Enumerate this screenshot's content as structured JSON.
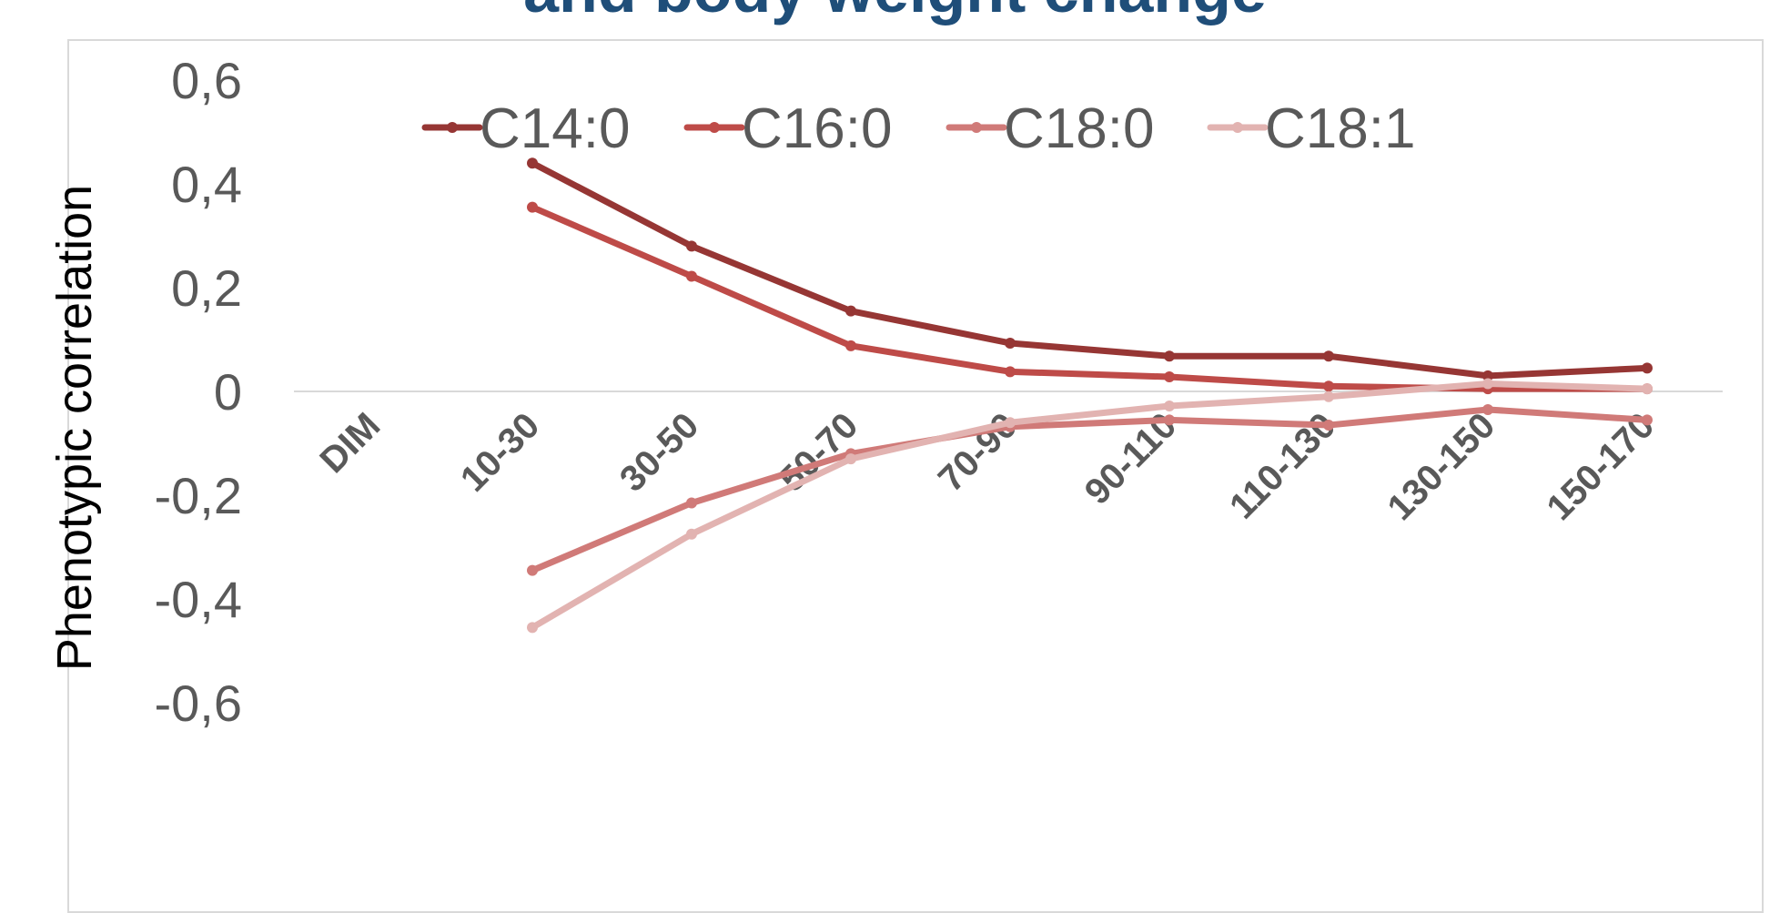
{
  "title_fragment": "and body weight change",
  "colors": {
    "title": "#1F4E79",
    "axis_text": "#595959",
    "zero_line": "#D9D9D9"
  },
  "chart_data": {
    "type": "line",
    "title": "and body weight change",
    "xlabel": "",
    "ylabel": "Phenotypic correlation",
    "categories": [
      "DIM",
      "10-30",
      "30-50",
      "50-70",
      "70-90",
      "90-110",
      "110-130",
      "130-150",
      "150-170"
    ],
    "ylim": [
      -0.6,
      0.6
    ],
    "yticks": [
      0.6,
      0.4,
      0.2,
      0,
      -0.2,
      -0.4,
      -0.6
    ],
    "ytick_labels": [
      "0,6",
      "0,4",
      "0,2",
      "0",
      "-0,2",
      "-0,4",
      "-0,6"
    ],
    "grid": false,
    "legend_position": "top",
    "series": [
      {
        "name": "C14:0",
        "color": "#963634",
        "values": [
          null,
          0.44,
          0.28,
          0.155,
          0.093,
          0.068,
          0.068,
          0.03,
          0.045
        ]
      },
      {
        "name": "C16:0",
        "color": "#BE4B48",
        "values": [
          null,
          0.355,
          0.222,
          0.088,
          0.038,
          0.028,
          0.01,
          0.005,
          0.005
        ]
      },
      {
        "name": "C18:0",
        "color": "#D07A78",
        "values": [
          null,
          -0.345,
          -0.215,
          -0.12,
          -0.068,
          -0.055,
          -0.065,
          -0.035,
          -0.055
        ]
      },
      {
        "name": "C18:1",
        "color": "#E2B3B1",
        "values": [
          null,
          -0.455,
          -0.275,
          -0.13,
          -0.06,
          -0.028,
          -0.01,
          0.015,
          0.005
        ]
      }
    ]
  }
}
